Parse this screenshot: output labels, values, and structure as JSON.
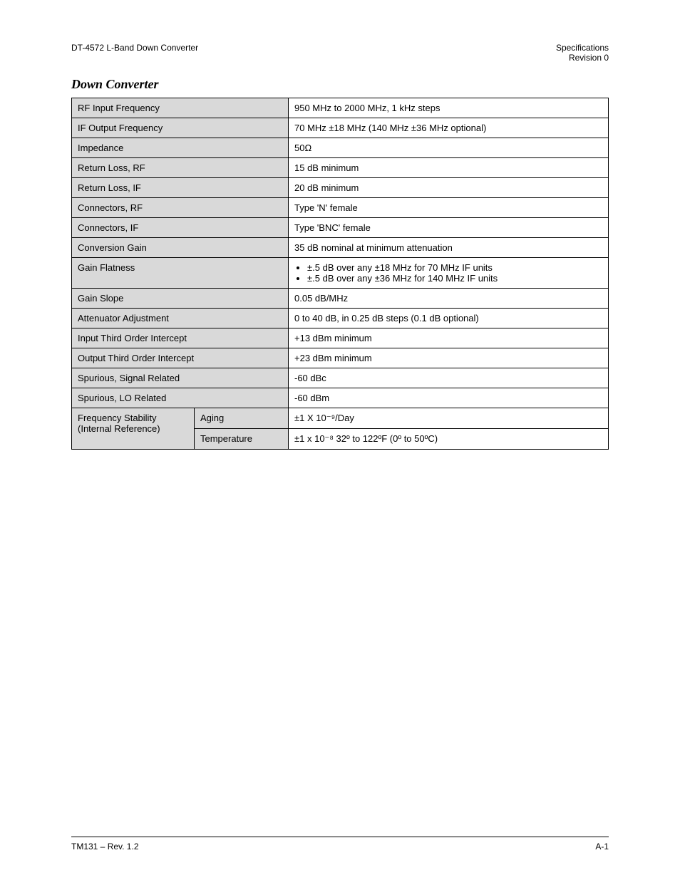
{
  "header": {
    "left": "DT-4572 L-Band Down Converter",
    "right_top": "Specifications",
    "right_bottom": "Revision 0"
  },
  "section_title": "Down Converter",
  "rows": {
    "rf_input": {
      "label": "RF Input Frequency",
      "value": "950 MHz to 2000 MHz, 1 kHz steps"
    },
    "if_output": {
      "label": "IF Output Frequency",
      "value": "70 MHz ±18 MHz (140 MHz ±36 MHz optional)"
    },
    "impedance": {
      "label": "Impedance",
      "value": "50Ω"
    },
    "return_loss_rf": {
      "label": "Return Loss, RF",
      "value": "15 dB minimum"
    },
    "return_loss_if": {
      "label": "Return Loss, IF",
      "value": "20 dB minimum"
    },
    "connectors_rf": {
      "label": "Connectors, RF",
      "value": "Type 'N' female"
    },
    "connectors_if": {
      "label": "Connectors, IF",
      "value": "Type 'BNC' female"
    },
    "conversion_gain": {
      "label": "Conversion Gain",
      "value": "35 dB nominal at minimum attenuation"
    },
    "gain_flatness": {
      "label": "Gain Flatness",
      "bullet1": "±.5 dB over any ±18 MHz for 70 MHz IF units",
      "bullet2": "±.5 dB over any ±36 MHz for 140 MHz IF units"
    },
    "gain_slope": {
      "label": "Gain Slope",
      "value": "0.05 dB/MHz"
    },
    "attenuator_adjust": {
      "label": "Attenuator Adjustment",
      "value": "0 to 40 dB, in 0.25 dB steps (0.1 dB optional)"
    },
    "input_third": {
      "label": "Input Third Order Intercept",
      "value": "+13 dBm minimum"
    },
    "output_third": {
      "label": "Output Third Order Intercept",
      "value": "+23 dBm minimum"
    },
    "spurious_signal": {
      "label": "Spurious, Signal Related",
      "value": "-60 dBc"
    },
    "spurious_lo": {
      "label": "Spurious, LO Related",
      "value": "-60 dBm"
    },
    "freq_stability": {
      "label": "Frequency Stability (Internal Reference)",
      "aging_label": "Aging",
      "aging_value": "±1 X 10⁻⁹/Day",
      "temp_label": "Temperature",
      "temp_value": "±1 x 10⁻⁸ 32º to 122ºF (0º to 50ºC)"
    }
  },
  "footer": {
    "left": "TM131 – Rev. 1.2",
    "right": "A-1"
  }
}
